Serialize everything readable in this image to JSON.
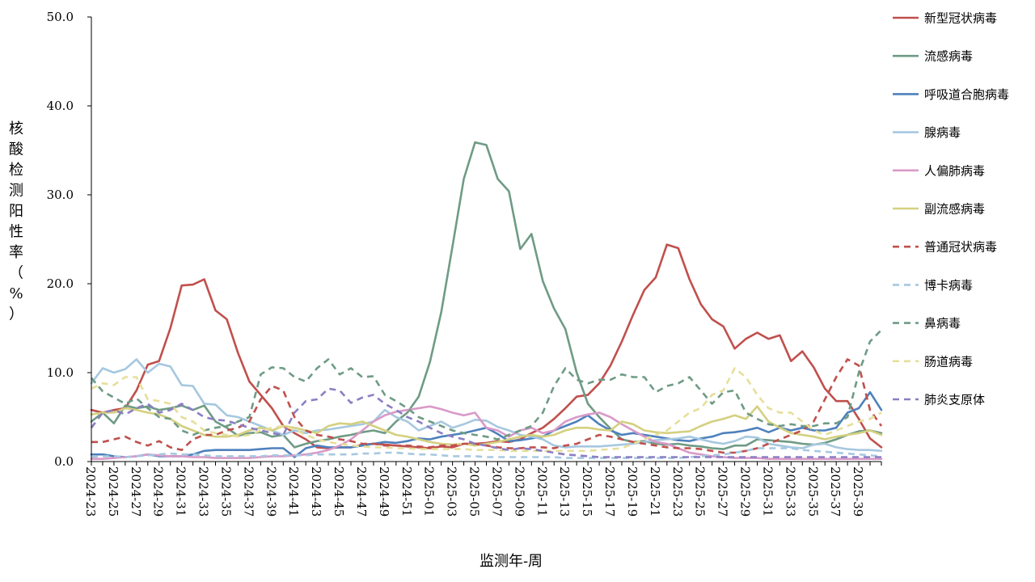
{
  "chart_data": {
    "type": "line",
    "xlabel": "监测年-周",
    "ylabel": "核酸检测阳性率（%）",
    "ylim": [
      0,
      50
    ],
    "yticks": [
      "0.0",
      "10.0",
      "20.0",
      "30.0",
      "40.0",
      "50.0"
    ],
    "grid": false,
    "legend_position": "right",
    "x_tick_labels": [
      "2024-23",
      "2024-25",
      "2024-27",
      "2024-29",
      "2024-31",
      "2024-33",
      "2024-35",
      "2024-37",
      "2024-39",
      "2024-41",
      "2024-43",
      "2024-45",
      "2024-47",
      "2024-49",
      "2024-51",
      "2025-01",
      "2025-03",
      "2025-05",
      "2025-07",
      "2025-09",
      "2025-11",
      "2025-13",
      "2025-15",
      "2025-17",
      "2025-19",
      "2025-21",
      "2025-23",
      "2025-25",
      "2025-27",
      "2025-29",
      "2025-31",
      "2025-33",
      "2025-35",
      "2025-37",
      "2025-39"
    ],
    "series": [
      {
        "name": "新型冠状病毒",
        "color": "#c0504d",
        "dash": false,
        "values": [
          5.8,
          5.5,
          5.8,
          6.0,
          8.0,
          10.9,
          11.3,
          15.0,
          19.8,
          19.9,
          20.5,
          17.0,
          16.0,
          12.2,
          9.0,
          7.5,
          6.0,
          4.0,
          3.2,
          2.5,
          1.6,
          1.5,
          1.6,
          1.6,
          1.9,
          2.0,
          1.9,
          1.8,
          1.7,
          1.6,
          1.5,
          1.7,
          1.6,
          2.0,
          2.0,
          2.1,
          2.3,
          2.2,
          2.5,
          3.2,
          3.8,
          4.8,
          6.0,
          7.3,
          7.5,
          8.8,
          10.8,
          13.5,
          16.5,
          19.3,
          20.7,
          24.4,
          24.0,
          20.5,
          17.7,
          16.0,
          15.2,
          12.7,
          13.8,
          14.5,
          13.8,
          14.2,
          11.3,
          12.4,
          10.6,
          8.2,
          6.8,
          6.8,
          4.8,
          2.6,
          1.6
        ]
      },
      {
        "name": "流感病毒",
        "color": "#6f9b85",
        "dash": false,
        "values": [
          4.5,
          5.5,
          4.3,
          6.3,
          6.0,
          6.2,
          5.8,
          6.0,
          6.3,
          5.8,
          6.3,
          4.5,
          3.8,
          2.9,
          3.2,
          3.3,
          2.8,
          3.0,
          1.6,
          2.0,
          2.3,
          2.5,
          2.8,
          3.0,
          3.3,
          3.5,
          3.2,
          4.5,
          5.5,
          7.3,
          11.2,
          16.8,
          24.2,
          31.8,
          35.9,
          35.6,
          31.8,
          30.4,
          23.9,
          25.6,
          20.3,
          17.2,
          14.9,
          10.0,
          6.5,
          5.0,
          3.7,
          2.5,
          2.2,
          2.3,
          2.0,
          1.9,
          2.0,
          1.8,
          1.7,
          1.5,
          1.4,
          1.8,
          1.8,
          2.5,
          2.4,
          2.3,
          2.2,
          2.0,
          1.9,
          2.1,
          2.5,
          3.0,
          3.4,
          3.5,
          3.2
        ]
      },
      {
        "name": "呼吸道合胞病毒",
        "color": "#4f81bd",
        "dash": false,
        "values": [
          0.8,
          0.8,
          0.6,
          0.5,
          0.6,
          0.8,
          0.6,
          0.6,
          0.6,
          0.8,
          1.2,
          1.3,
          1.3,
          1.3,
          1.3,
          1.4,
          1.5,
          1.5,
          0.5,
          1.5,
          1.8,
          1.6,
          1.6,
          1.6,
          1.8,
          2.0,
          2.2,
          2.1,
          2.3,
          2.6,
          2.5,
          2.8,
          3.0,
          3.2,
          3.5,
          3.8,
          3.1,
          2.3,
          2.4,
          2.6,
          2.8,
          3.5,
          4.0,
          4.5,
          5.2,
          4.2,
          3.5,
          3.0,
          3.2,
          3.0,
          2.8,
          2.6,
          2.4,
          2.3,
          2.6,
          2.8,
          3.2,
          3.3,
          3.5,
          3.8,
          3.3,
          3.8,
          3.5,
          3.8,
          3.5,
          3.5,
          3.8,
          5.5,
          6.0,
          7.8,
          5.8
        ]
      },
      {
        "name": "腺病毒",
        "color": "#a6c8e0",
        "dash": false,
        "values": [
          8.8,
          10.5,
          10.0,
          10.4,
          11.5,
          10.0,
          11.0,
          10.7,
          8.6,
          8.5,
          6.5,
          6.4,
          5.2,
          5.0,
          4.5,
          4.0,
          3.5,
          3.0,
          3.5,
          3.2,
          3.5,
          3.6,
          3.8,
          4.0,
          4.2,
          4.5,
          5.8,
          5.0,
          4.5,
          3.5,
          4.0,
          4.5,
          3.8,
          4.2,
          4.7,
          4.6,
          3.9,
          3.5,
          3.0,
          2.8,
          2.5,
          1.8,
          1.6,
          1.7,
          1.7,
          1.7,
          1.8,
          1.9,
          2.0,
          2.2,
          2.4,
          2.5,
          2.6,
          2.8,
          2.5,
          2.2,
          2.0,
          2.3,
          2.8,
          2.7,
          2.0,
          1.8,
          1.6,
          1.5,
          1.9,
          2.0,
          1.6,
          1.4,
          1.3,
          1.3,
          1.2
        ]
      },
      {
        "name": "人偏肺病毒",
        "color": "#d99ac8",
        "dash": false,
        "values": [
          0.3,
          0.3,
          0.4,
          0.5,
          0.6,
          0.8,
          0.7,
          0.6,
          0.6,
          0.5,
          0.5,
          0.4,
          0.4,
          0.4,
          0.4,
          0.5,
          0.6,
          0.6,
          0.7,
          0.8,
          1.0,
          1.3,
          1.8,
          2.5,
          3.5,
          4.5,
          5.2,
          5.6,
          5.8,
          6.0,
          6.2,
          5.9,
          5.5,
          5.2,
          5.5,
          3.8,
          3.5,
          2.8,
          3.5,
          3.8,
          3.2,
          3.5,
          4.5,
          5.0,
          5.3,
          5.5,
          5.0,
          4.2,
          3.5,
          2.8,
          2.2,
          2.0,
          1.5,
          1.0,
          0.8,
          0.6,
          0.5,
          0.4,
          0.4,
          0.4,
          0.3,
          0.3,
          0.3,
          0.3,
          0.3,
          0.3,
          0.3,
          0.3,
          0.3,
          0.3,
          0.3
        ]
      },
      {
        "name": "副流感病毒",
        "color": "#d4d080",
        "dash": false,
        "values": [
          5.3,
          5.5,
          5.5,
          6.0,
          5.8,
          5.5,
          5.3,
          4.8,
          4.0,
          3.5,
          3.0,
          2.8,
          2.8,
          3.0,
          3.5,
          3.8,
          3.5,
          4.0,
          3.8,
          3.5,
          3.2,
          4.0,
          4.3,
          4.2,
          4.5,
          4.0,
          3.5,
          3.0,
          2.8,
          2.5,
          2.2,
          2.0,
          1.9,
          2.0,
          1.8,
          2.0,
          2.2,
          2.5,
          2.8,
          3.0,
          2.8,
          3.0,
          3.5,
          3.8,
          3.8,
          3.6,
          3.5,
          4.5,
          4.2,
          3.5,
          3.3,
          3.2,
          3.3,
          3.4,
          4.0,
          4.5,
          4.8,
          5.2,
          4.8,
          6.2,
          4.5,
          3.8,
          3.2,
          3.0,
          2.8,
          2.5,
          2.8,
          3.0,
          3.2,
          3.5,
          3.0
        ]
      },
      {
        "name": "普通冠状病毒",
        "color": "#c0504d",
        "dash": true,
        "values": [
          2.2,
          2.2,
          2.5,
          2.8,
          2.2,
          1.8,
          2.3,
          1.6,
          1.3,
          2.5,
          3.0,
          3.0,
          3.5,
          3.8,
          4.5,
          7.0,
          8.5,
          8.0,
          5.0,
          3.5,
          3.0,
          2.8,
          2.5,
          2.3,
          2.0,
          2.0,
          1.8,
          1.8,
          1.8,
          1.7,
          1.6,
          1.8,
          1.8,
          2.0,
          2.0,
          1.8,
          1.6,
          1.5,
          1.5,
          1.6,
          1.6,
          1.5,
          1.8,
          2.0,
          2.5,
          3.0,
          2.8,
          2.5,
          2.2,
          2.0,
          1.8,
          1.6,
          1.5,
          1.5,
          1.4,
          1.2,
          1.0,
          1.0,
          1.2,
          1.5,
          2.0,
          2.5,
          3.0,
          3.5,
          4.5,
          7.0,
          9.5,
          11.5,
          10.8,
          5.8,
          4.0
        ]
      },
      {
        "name": "博卡病毒",
        "color": "#a6c8e0",
        "dash": true,
        "values": [
          0.5,
          0.6,
          0.6,
          0.5,
          0.6,
          0.7,
          0.8,
          0.9,
          0.8,
          0.8,
          0.7,
          0.6,
          0.6,
          0.6,
          0.6,
          0.6,
          0.7,
          0.7,
          0.7,
          0.7,
          0.8,
          0.8,
          0.8,
          0.8,
          0.9,
          0.9,
          1.0,
          1.0,
          0.9,
          0.8,
          0.8,
          0.7,
          0.6,
          0.6,
          0.6,
          0.5,
          0.5,
          0.5,
          0.5,
          0.5,
          0.5,
          0.5,
          0.4,
          0.4,
          0.4,
          0.4,
          0.4,
          0.4,
          0.4,
          0.4,
          0.4,
          0.4,
          0.4,
          0.5,
          0.6,
          0.7,
          0.8,
          1.0,
          1.2,
          1.5,
          1.5,
          1.5,
          1.5,
          1.3,
          1.2,
          1.1,
          1.0,
          0.9,
          0.8,
          0.7,
          0.6
        ]
      },
      {
        "name": "鼻病毒",
        "color": "#6f9b85",
        "dash": true,
        "values": [
          9.4,
          7.9,
          7.2,
          6.5,
          7.1,
          6.0,
          5.0,
          4.8,
          3.5,
          3.0,
          3.5,
          3.8,
          4.0,
          4.5,
          5.0,
          9.8,
          10.6,
          10.5,
          9.5,
          9.0,
          10.5,
          11.5,
          9.8,
          10.5,
          9.5,
          9.6,
          7.5,
          6.8,
          6.0,
          5.0,
          4.5,
          4.0,
          3.5,
          3.2,
          3.0,
          2.8,
          2.5,
          3.0,
          3.5,
          4.0,
          5.5,
          8.5,
          10.5,
          9.2,
          8.8,
          9.2,
          9.2,
          9.8,
          9.5,
          9.5,
          7.8,
          8.5,
          8.8,
          9.5,
          8.0,
          6.5,
          7.8,
          8.0,
          5.5,
          4.8,
          4.2,
          4.0,
          4.2,
          4.0,
          4.0,
          4.3,
          4.3,
          5.0,
          10.0,
          13.5,
          14.8
        ]
      },
      {
        "name": "肠道病毒",
        "color": "#e6df9a",
        "dash": true,
        "values": [
          8.2,
          8.8,
          8.6,
          9.5,
          9.5,
          7.0,
          6.8,
          6.5,
          5.0,
          4.5,
          3.5,
          3.2,
          3.0,
          2.8,
          3.0,
          3.5,
          3.8,
          4.0,
          3.6,
          3.0,
          2.5,
          2.2,
          2.0,
          1.8,
          1.7,
          1.6,
          1.6,
          1.5,
          1.5,
          1.4,
          1.4,
          1.4,
          1.4,
          1.4,
          1.3,
          1.3,
          1.3,
          1.2,
          1.2,
          1.2,
          1.2,
          1.2,
          1.2,
          1.2,
          1.2,
          1.3,
          1.4,
          1.5,
          2.0,
          2.5,
          3.0,
          3.5,
          4.5,
          5.5,
          6.0,
          7.5,
          8.0,
          10.5,
          9.5,
          7.5,
          6.0,
          5.5,
          5.5,
          4.5,
          3.5,
          3.0,
          3.5,
          4.0,
          4.5,
          4.8,
          5.5
        ]
      },
      {
        "name": "肺炎支原体",
        "color": "#8b7ec4",
        "dash": true,
        "values": [
          3.8,
          5.5,
          5.8,
          5.3,
          6.0,
          6.5,
          5.5,
          5.8,
          6.5,
          5.8,
          5.0,
          4.7,
          4.6,
          4.2,
          3.8,
          3.5,
          3.2,
          3.0,
          5.5,
          6.8,
          7.0,
          8.2,
          8.0,
          6.6,
          7.2,
          7.5,
          6.5,
          5.8,
          5.0,
          4.5,
          3.8,
          3.2,
          2.8,
          2.5,
          2.0,
          1.8,
          1.5,
          1.3,
          1.5,
          1.4,
          1.2,
          1.0,
          0.8,
          0.7,
          0.6,
          0.5,
          0.5,
          0.5,
          0.5,
          0.5,
          0.5,
          0.5,
          0.5,
          0.5,
          0.5,
          0.5,
          0.5,
          0.5,
          0.5,
          0.5,
          0.5,
          0.5,
          0.5,
          0.5,
          0.5,
          0.5,
          0.5,
          0.5,
          0.5,
          0.5,
          0.5
        ]
      }
    ]
  }
}
